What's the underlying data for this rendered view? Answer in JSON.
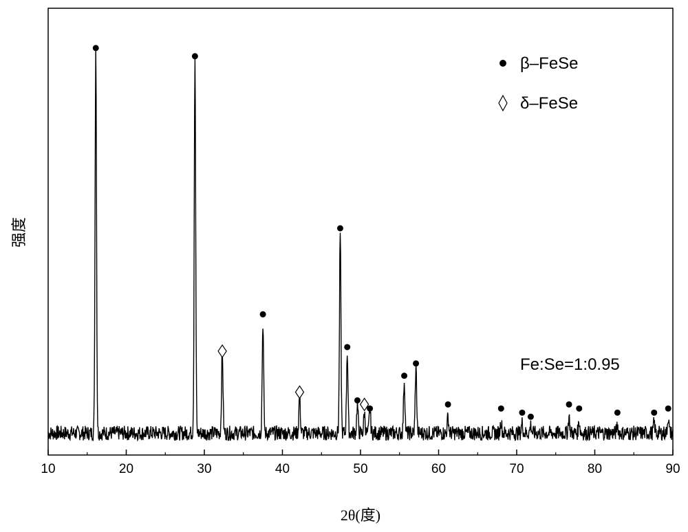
{
  "chart_data": {
    "type": "line",
    "title": "",
    "xlabel": "2θ(度)",
    "ylabel": "强度",
    "xlim": [
      10,
      90
    ],
    "ylim": [
      0,
      100
    ],
    "xticks": [
      10,
      20,
      30,
      40,
      50,
      60,
      70,
      80,
      90
    ],
    "grid": false,
    "y_tick_labels_shown": false,
    "legend": {
      "position": "top-right",
      "entries": [
        {
          "marker": "filled-circle",
          "label": "β–FeSe"
        },
        {
          "marker": "open-diamond",
          "label": "δ–FeSe"
        }
      ]
    },
    "annotation": "Fe:Se=1:0.95",
    "baseline": 3,
    "noise_amplitude": 1.8,
    "peaks": [
      {
        "x": 16.1,
        "y": 95,
        "phase": "β"
      },
      {
        "x": 28.8,
        "y": 92,
        "phase": "β"
      },
      {
        "x": 32.3,
        "y": 20,
        "phase": "δ"
      },
      {
        "x": 37.5,
        "y": 27,
        "phase": "β"
      },
      {
        "x": 42.2,
        "y": 9,
        "phase": "δ"
      },
      {
        "x": 47.4,
        "y": 49,
        "phase": "β"
      },
      {
        "x": 48.3,
        "y": 20,
        "phase": "β"
      },
      {
        "x": 49.6,
        "y": 7,
        "phase": "β"
      },
      {
        "x": 50.5,
        "y": 5,
        "phase": "δ"
      },
      {
        "x": 51.2,
        "y": 6,
        "phase": "β"
      },
      {
        "x": 55.6,
        "y": 13,
        "phase": "β"
      },
      {
        "x": 57.1,
        "y": 16,
        "phase": "β"
      },
      {
        "x": 61.2,
        "y": 4,
        "phase": "β"
      },
      {
        "x": 68.0,
        "y": 3,
        "phase": "β"
      },
      {
        "x": 70.7,
        "y": 2.5,
        "phase": "β"
      },
      {
        "x": 71.8,
        "y": 2,
        "phase": "β"
      },
      {
        "x": 76.7,
        "y": 4,
        "phase": "β"
      },
      {
        "x": 78.0,
        "y": 3,
        "phase": "β"
      },
      {
        "x": 82.9,
        "y": 2,
        "phase": "β"
      },
      {
        "x": 87.6,
        "y": 2.5,
        "phase": "β"
      },
      {
        "x": 89.4,
        "y": 4,
        "phase": "β"
      }
    ],
    "marker_heights": [
      97,
      95,
      23,
      32,
      13,
      53,
      24,
      11,
      10,
      9,
      17,
      20,
      10,
      9,
      8,
      7,
      10,
      9,
      8,
      8,
      9
    ]
  }
}
